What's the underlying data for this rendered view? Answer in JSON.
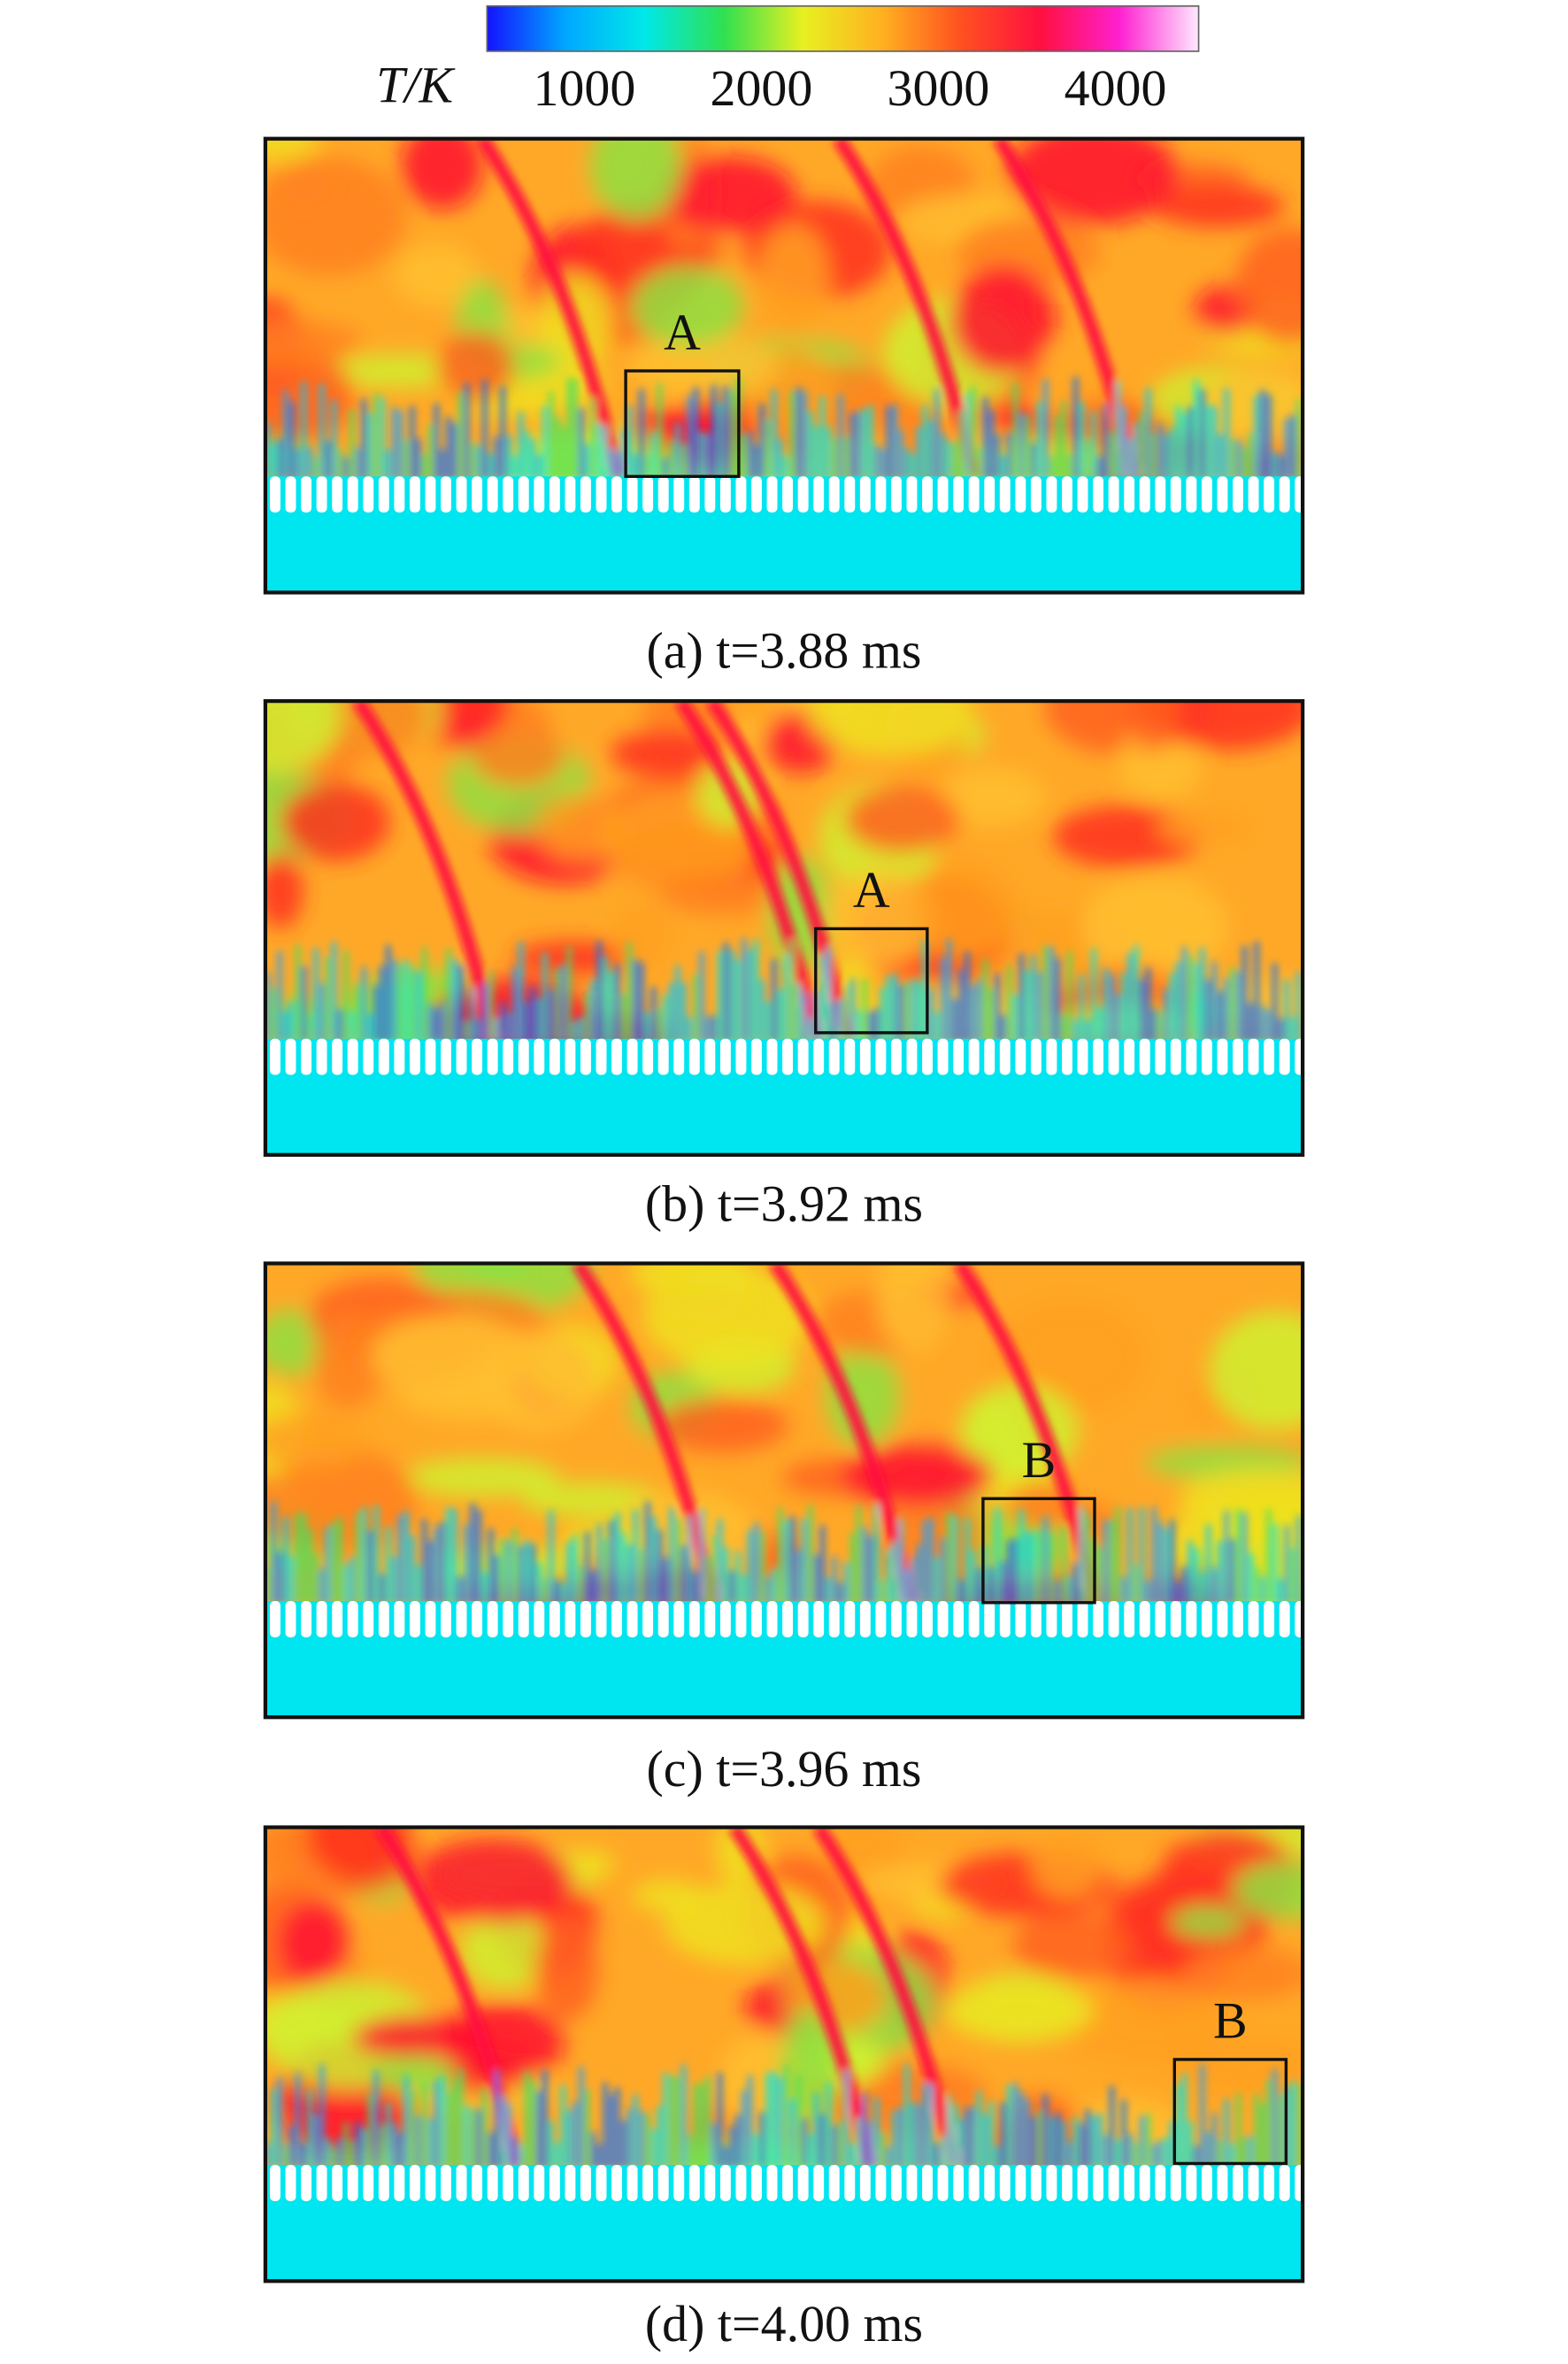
{
  "colorbar": {
    "label": "T/K",
    "range": [
      450,
      4470
    ],
    "ticks": [
      1000,
      2000,
      3000,
      4000
    ],
    "colormap": [
      "#1414ff",
      "#00a8ff",
      "#00e8e8",
      "#30e050",
      "#e8f020",
      "#ffb020",
      "#ff5020",
      "#ff1040",
      "#ff20d0",
      "#ffe8ff"
    ]
  },
  "panels": [
    {
      "caption": "(a) t=3.88 ms",
      "box_label": "A"
    },
    {
      "caption": "(b) t=3.92 ms",
      "box_label": "A"
    },
    {
      "caption": "(c) t=3.96 ms",
      "box_label": "B"
    },
    {
      "caption": "(d) t=4.00 ms",
      "box_label": "B"
    }
  ]
}
